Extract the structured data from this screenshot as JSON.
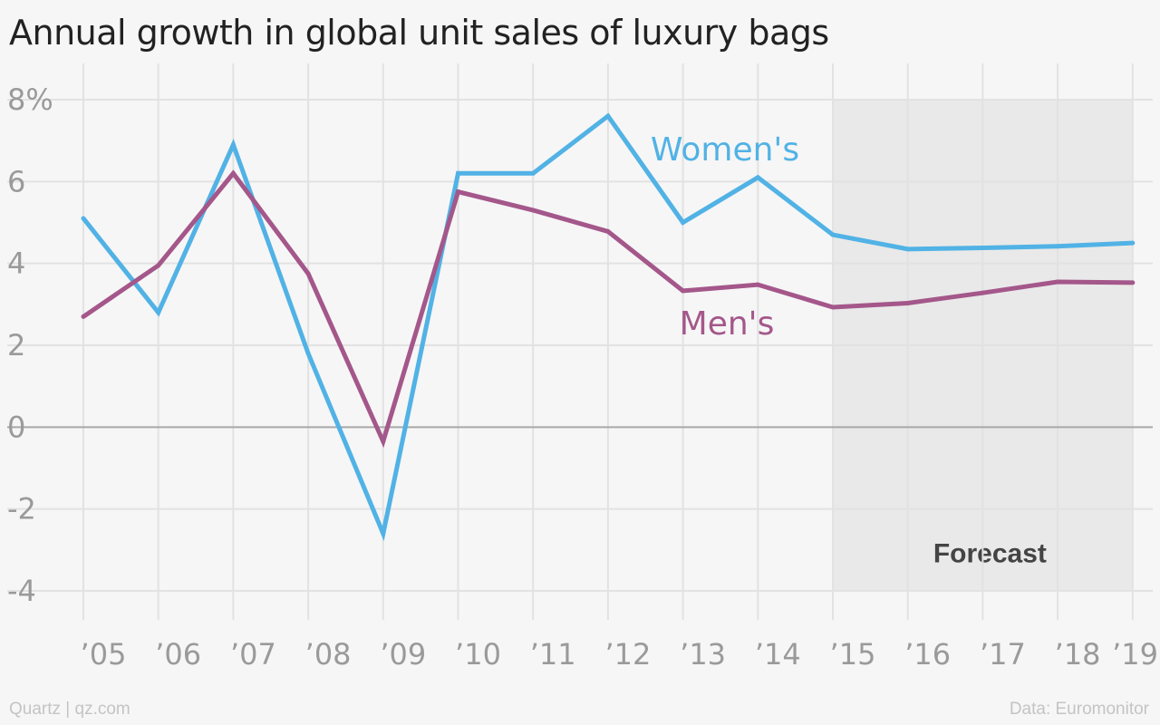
{
  "chart_data": {
    "type": "line",
    "title": "Annual growth in global unit sales of luxury bags",
    "x": [
      "’05",
      "’06",
      "’07",
      "’08",
      "’09",
      "’10",
      "’11",
      "’12",
      "’13",
      "’14",
      "’15",
      "’16",
      "’17",
      "’18",
      "’19"
    ],
    "series": [
      {
        "name": "Women's",
        "color": "#51b2e5",
        "values": [
          5.1,
          2.8,
          6.9,
          1.8,
          -2.6,
          6.2,
          6.2,
          7.6,
          5.0,
          6.1,
          4.7,
          4.35,
          4.38,
          4.42,
          4.5
        ]
      },
      {
        "name": "Men's",
        "color": "#a4578a",
        "values": [
          2.7,
          3.95,
          6.2,
          3.75,
          -0.35,
          5.75,
          5.3,
          4.78,
          3.33,
          3.48,
          2.93,
          3.03,
          3.28,
          3.55,
          3.53
        ]
      }
    ],
    "yticks": [
      8,
      6,
      4,
      2,
      0,
      -2,
      -4
    ],
    "ytick_labels": [
      "8%",
      "6",
      "4",
      "2",
      "0",
      "-2",
      "-4"
    ],
    "ylim": [
      -4,
      8
    ],
    "forecast": {
      "label": "Forecast",
      "from": "’15",
      "to": "’19"
    },
    "grid": true,
    "legend": "inline labels"
  },
  "footer": {
    "source_left": "Quartz | qz.com",
    "source_right": "Data: Euromonitor"
  }
}
